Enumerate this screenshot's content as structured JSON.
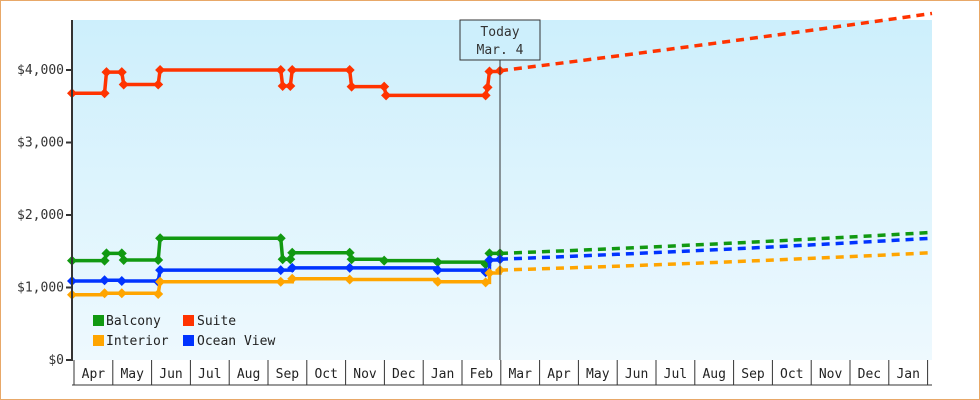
{
  "chart_data": {
    "type": "line",
    "title": "",
    "xlabel": "",
    "ylabel": "",
    "ylim": [
      0,
      4700
    ],
    "y_ticks": [
      {
        "value": 0,
        "label": "$0"
      },
      {
        "value": 1000,
        "label": "$1,000"
      },
      {
        "value": 2000,
        "label": "$2,000"
      },
      {
        "value": 3000,
        "label": "$3,000"
      },
      {
        "value": 4000,
        "label": "$4,000"
      }
    ],
    "x_ticks": [
      "Apr",
      "May",
      "Jun",
      "Jul",
      "Aug",
      "Sep",
      "Oct",
      "Nov",
      "Dec",
      "Jan",
      "Feb",
      "Mar",
      "Apr",
      "May",
      "Jun",
      "Jul",
      "Aug",
      "Sep",
      "Oct",
      "Nov",
      "Dec",
      "Jan"
    ],
    "grid": false,
    "legend_position": "lower-left inside plot",
    "annotation": {
      "line1": "Today",
      "line2": "Mar. 4"
    },
    "series": [
      {
        "name": "Suite",
        "color": "#ff3300",
        "historical_steps": [
          {
            "t": 0.0,
            "v": 3680
          },
          {
            "t": 0.85,
            "v": 3680
          },
          {
            "t": 0.9,
            "v": 3970
          },
          {
            "t": 1.3,
            "v": 3970
          },
          {
            "t": 1.35,
            "v": 3800
          },
          {
            "t": 2.25,
            "v": 3800
          },
          {
            "t": 2.3,
            "v": 4000
          },
          {
            "t": 5.45,
            "v": 4000
          },
          {
            "t": 5.5,
            "v": 3780
          },
          {
            "t": 5.7,
            "v": 3780
          },
          {
            "t": 5.75,
            "v": 4000
          },
          {
            "t": 7.25,
            "v": 4000
          },
          {
            "t": 7.3,
            "v": 3770
          },
          {
            "t": 8.15,
            "v": 3770
          },
          {
            "t": 8.2,
            "v": 3650
          },
          {
            "t": 10.8,
            "v": 3650
          },
          {
            "t": 10.85,
            "v": 3760
          },
          {
            "t": 10.9,
            "v": 3980
          },
          {
            "t": 11.4,
            "v": 3990
          }
        ],
        "forecast_end": 4780
      },
      {
        "name": "Balcony",
        "color": "#119911",
        "historical_steps": [
          {
            "t": 0.0,
            "v": 1370
          },
          {
            "t": 0.85,
            "v": 1370
          },
          {
            "t": 0.9,
            "v": 1470
          },
          {
            "t": 1.3,
            "v": 1470
          },
          {
            "t": 1.35,
            "v": 1380
          },
          {
            "t": 2.25,
            "v": 1380
          },
          {
            "t": 2.3,
            "v": 1680
          },
          {
            "t": 5.45,
            "v": 1680
          },
          {
            "t": 5.5,
            "v": 1390
          },
          {
            "t": 5.7,
            "v": 1390
          },
          {
            "t": 5.75,
            "v": 1480
          },
          {
            "t": 7.25,
            "v": 1480
          },
          {
            "t": 7.3,
            "v": 1390
          },
          {
            "t": 8.15,
            "v": 1370
          },
          {
            "t": 9.55,
            "v": 1350
          },
          {
            "t": 10.8,
            "v": 1320
          },
          {
            "t": 10.9,
            "v": 1470
          },
          {
            "t": 11.4,
            "v": 1470
          }
        ],
        "forecast_end": 1760
      },
      {
        "name": "Ocean View",
        "color": "#0033ff",
        "historical_steps": [
          {
            "t": 0.0,
            "v": 1090
          },
          {
            "t": 0.85,
            "v": 1100
          },
          {
            "t": 1.3,
            "v": 1090
          },
          {
            "t": 2.25,
            "v": 1080
          },
          {
            "t": 2.3,
            "v": 1240
          },
          {
            "t": 5.45,
            "v": 1240
          },
          {
            "t": 5.75,
            "v": 1270
          },
          {
            "t": 7.25,
            "v": 1270
          },
          {
            "t": 9.55,
            "v": 1240
          },
          {
            "t": 10.8,
            "v": 1210
          },
          {
            "t": 10.9,
            "v": 1380
          },
          {
            "t": 11.4,
            "v": 1390
          }
        ],
        "forecast_end": 1680
      },
      {
        "name": "Interior",
        "color": "#ffa500",
        "historical_steps": [
          {
            "t": 0.0,
            "v": 900
          },
          {
            "t": 0.85,
            "v": 920
          },
          {
            "t": 1.3,
            "v": 920
          },
          {
            "t": 2.25,
            "v": 910
          },
          {
            "t": 2.3,
            "v": 1080
          },
          {
            "t": 5.45,
            "v": 1080
          },
          {
            "t": 5.75,
            "v": 1120
          },
          {
            "t": 7.25,
            "v": 1110
          },
          {
            "t": 9.55,
            "v": 1080
          },
          {
            "t": 10.8,
            "v": 1070
          },
          {
            "t": 10.9,
            "v": 1200
          },
          {
            "t": 11.4,
            "v": 1240
          }
        ],
        "forecast_end": 1480
      }
    ]
  },
  "legend": [
    {
      "label": "Balcony",
      "color": "#119911"
    },
    {
      "label": "Suite",
      "color": "#ff3300"
    },
    {
      "label": "Interior",
      "color": "#ffa500"
    },
    {
      "label": "Ocean View",
      "color": "#0033ff"
    }
  ],
  "today_marker": {
    "line1": "Today",
    "line2": "Mar. 4"
  }
}
